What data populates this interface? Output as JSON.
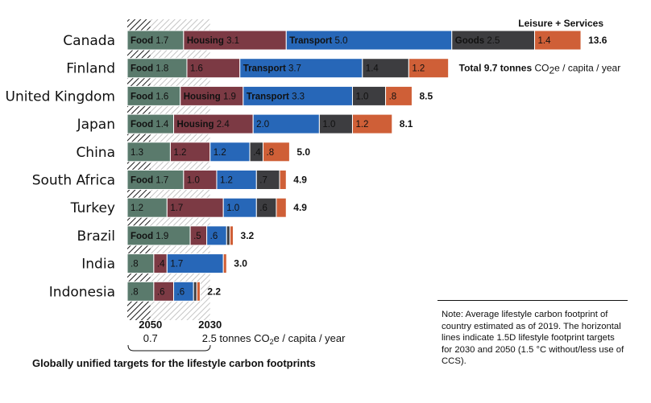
{
  "chart_data": {
    "type": "bar",
    "orientation": "horizontal",
    "stacked": true,
    "unit_label_prefix": "CO",
    "unit_label_sub": "2",
    "unit_label_suffix": "e / capita / year",
    "first_total_prefix": "Total 9.7 tonnes",
    "segment_names": [
      "Food",
      "Housing",
      "Transport",
      "Goods",
      "Leisure + Services"
    ],
    "segment_colors": [
      "#5a7a6c",
      "#7c3a44",
      "#2767b8",
      "#3d3d40",
      "#cf5f37"
    ],
    "header_label": "Leisure + Services",
    "countries": [
      {
        "name": "Canada",
        "total": "13.6",
        "values": [
          1.7,
          3.1,
          5.0,
          2.5,
          1.4
        ],
        "labels": [
          {
            "name": "Food",
            "value": "1.7"
          },
          {
            "name": "Housing",
            "value": "3.1"
          },
          {
            "name": "Transport",
            "value": "5.0"
          },
          {
            "name": "Goods",
            "value": "2.5"
          },
          {
            "name": "",
            "value": "1.4"
          }
        ]
      },
      {
        "name": "Finland",
        "total": "9.7",
        "values": [
          1.8,
          1.6,
          3.7,
          1.4,
          1.2
        ],
        "labels": [
          {
            "name": "Food",
            "value": "1.8"
          },
          {
            "name": "",
            "value": "1.6"
          },
          {
            "name": "Transport",
            "value": "3.7"
          },
          {
            "name": "",
            "value": "1.4"
          },
          {
            "name": "",
            "value": "1.2"
          }
        ]
      },
      {
        "name": "United Kingdom",
        "total": "8.5",
        "values": [
          1.6,
          1.9,
          3.3,
          1.0,
          0.8
        ],
        "labels": [
          {
            "name": "Food",
            "value": "1.6"
          },
          {
            "name": "Housing",
            "value": "1.9"
          },
          {
            "name": "Transport",
            "value": "3.3"
          },
          {
            "name": "",
            "value": "1.0"
          },
          {
            "name": "",
            "value": ".8"
          }
        ]
      },
      {
        "name": "Japan",
        "total": "8.1",
        "values": [
          1.4,
          2.4,
          2.0,
          1.0,
          1.2
        ],
        "labels": [
          {
            "name": "Food",
            "value": "1.4"
          },
          {
            "name": "Housing",
            "value": "2.4"
          },
          {
            "name": "",
            "value": "2.0"
          },
          {
            "name": "",
            "value": "1.0"
          },
          {
            "name": "",
            "value": "1.2"
          }
        ]
      },
      {
        "name": "China",
        "total": "5.0",
        "values": [
          1.3,
          1.2,
          1.2,
          0.4,
          0.8
        ],
        "labels": [
          {
            "name": "",
            "value": "1.3"
          },
          {
            "name": "",
            "value": "1.2"
          },
          {
            "name": "",
            "value": "1.2"
          },
          {
            "name": "",
            "value": ".4"
          },
          {
            "name": "",
            "value": ".8"
          }
        ]
      },
      {
        "name": "South Africa",
        "total": "4.9",
        "values": [
          1.7,
          1.0,
          1.2,
          0.7,
          0.2
        ],
        "labels": [
          {
            "name": "Food",
            "value": "1.7"
          },
          {
            "name": "",
            "value": "1.0"
          },
          {
            "name": "",
            "value": "1.2"
          },
          {
            "name": "",
            "value": ".7"
          },
          {
            "name": "",
            "value": ""
          }
        ]
      },
      {
        "name": "Turkey",
        "total": "4.9",
        "values": [
          1.2,
          1.7,
          1.0,
          0.6,
          0.3
        ],
        "labels": [
          {
            "name": "",
            "value": "1.2"
          },
          {
            "name": "",
            "value": "1.7"
          },
          {
            "name": "",
            "value": "1.0"
          },
          {
            "name": "",
            "value": ".6"
          },
          {
            "name": "",
            "value": ""
          }
        ]
      },
      {
        "name": "Brazil",
        "total": "3.2",
        "values": [
          1.9,
          0.5,
          0.6,
          0.1,
          0.1
        ],
        "labels": [
          {
            "name": "Food",
            "value": "1.9"
          },
          {
            "name": "",
            "value": ".5"
          },
          {
            "name": "",
            "value": ".6"
          },
          {
            "name": "",
            "value": ""
          },
          {
            "name": "",
            "value": ""
          }
        ]
      },
      {
        "name": "India",
        "total": "3.0",
        "values": [
          0.8,
          0.4,
          1.7,
          0.0,
          0.1
        ],
        "labels": [
          {
            "name": "",
            "value": ".8"
          },
          {
            "name": "",
            "value": ".4"
          },
          {
            "name": "",
            "value": "1.7"
          },
          {
            "name": "",
            "value": ""
          },
          {
            "name": "",
            "value": ""
          }
        ]
      },
      {
        "name": "Indonesia",
        "total": "2.2",
        "values": [
          0.8,
          0.6,
          0.6,
          0.1,
          0.1
        ],
        "labels": [
          {
            "name": "",
            "value": ".8"
          },
          {
            "name": "",
            "value": ".6"
          },
          {
            "name": "",
            "value": ".6"
          },
          {
            "name": "",
            "value": ""
          },
          {
            "name": "",
            "value": ""
          }
        ]
      }
    ],
    "targets": [
      {
        "year": "2050",
        "value": 0.7,
        "value_label": "0.7"
      },
      {
        "year": "2030",
        "value": 2.5,
        "value_label": "2.5"
      }
    ],
    "target_unit_text": "tonnes CO",
    "target_unit_sub": "2",
    "target_unit_suffix": "e / capita / year",
    "caption": "Globally unified targets for the lifestyle carbon footprints"
  },
  "note": "Note: Average lifestyle carbon footprint of country estimated as of 2019. The horizontal lines indicate 1.5D lifestyle footprint targets for 2030 and 2050 (1.5 °C without/less use of CCS)."
}
